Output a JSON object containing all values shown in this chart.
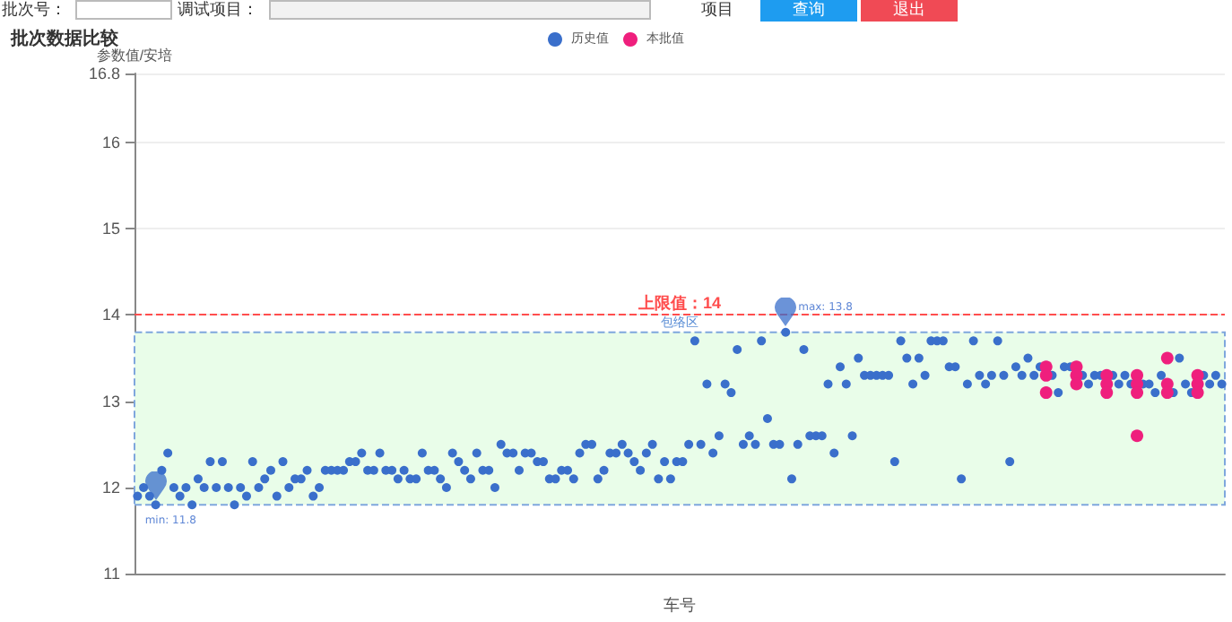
{
  "chart_data": {
    "type": "scatter",
    "title": "批次数据比较",
    "xlabel": "车号",
    "ylabel": "参数值/安培",
    "categories": [
      null,
      null,
      null,
      null,
      null,
      null,
      null,
      null,
      null,
      null,
      null,
      null,
      null,
      null,
      null,
      null,
      null,
      null,
      null,
      null,
      null,
      null,
      null,
      null,
      null,
      null,
      null,
      null,
      null,
      null,
      null,
      null,
      null,
      null,
      null,
      null,
      null,
      null,
      null,
      null,
      null,
      null,
      null,
      null,
      null,
      null,
      null,
      null,
      null,
      null,
      null,
      null,
      null,
      null,
      null,
      null,
      null,
      null,
      null,
      null,
      null,
      null,
      null,
      null,
      null,
      null,
      null,
      null,
      null,
      null,
      null,
      null,
      null,
      null,
      null,
      null,
      null,
      null,
      null,
      null,
      null,
      null,
      null,
      null,
      null,
      null,
      null,
      null,
      null,
      null,
      null,
      null,
      null,
      null,
      null,
      null,
      null,
      null,
      null,
      null,
      null,
      null,
      null,
      null,
      null,
      null,
      null,
      null,
      null,
      null,
      null,
      null,
      null,
      null,
      null,
      null,
      null,
      null,
      null,
      null,
      null,
      null,
      null,
      null,
      null,
      null,
      null,
      null,
      null,
      null,
      null,
      null,
      null,
      null,
      null,
      null,
      null,
      null,
      null,
      null,
      null,
      null,
      null,
      null,
      null,
      null,
      null,
      null,
      null,
      null,
      null,
      null,
      null,
      null,
      null,
      null,
      null,
      null,
      null,
      null,
      null,
      null,
      null,
      null,
      null,
      null,
      null,
      null,
      null,
      null,
      null,
      null,
      null,
      null,
      null,
      null,
      null,
      null,
      null,
      null
    ],
    "series": [
      {
        "name": "历史值",
        "color": "#3a6fcb",
        "values": [
          11.9,
          12.0,
          11.9,
          11.8,
          12.2,
          12.4,
          12.0,
          11.9,
          12.0,
          11.8,
          12.1,
          12.0,
          12.3,
          12.0,
          12.3,
          12.0,
          11.8,
          12.0,
          11.9,
          12.3,
          12.0,
          12.1,
          12.2,
          11.9,
          12.3,
          12.0,
          12.1,
          12.1,
          12.2,
          11.9,
          12.0,
          12.2,
          12.2,
          12.2,
          12.2,
          12.3,
          12.3,
          12.4,
          12.2,
          12.2,
          12.4,
          12.2,
          12.2,
          12.1,
          12.2,
          12.1,
          12.1,
          12.4,
          12.2,
          12.2,
          12.1,
          12.0,
          12.4,
          12.3,
          12.2,
          12.1,
          12.4,
          12.2,
          12.2,
          12.0,
          12.5,
          12.4,
          12.4,
          12.2,
          12.4,
          12.4,
          12.3,
          12.3,
          12.1,
          12.1,
          12.2,
          12.2,
          12.1,
          12.4,
          12.5,
          12.5,
          12.1,
          12.2,
          12.4,
          12.4,
          12.5,
          12.4,
          12.3,
          12.2,
          12.4,
          12.5,
          12.1,
          12.3,
          12.1,
          12.3,
          12.3,
          12.5,
          13.7,
          12.5,
          13.2,
          12.4,
          12.6,
          13.2,
          13.1,
          13.6,
          12.5,
          12.6,
          12.5,
          13.7,
          12.8,
          12.5,
          12.5,
          13.8,
          12.1,
          12.5,
          13.6,
          12.6,
          12.6,
          12.6,
          13.2,
          12.4,
          13.4,
          13.2,
          12.6,
          13.5,
          13.3,
          13.3,
          13.3,
          13.3,
          13.3,
          12.3,
          13.7,
          13.5,
          13.2,
          13.5,
          13.3,
          13.7,
          13.7,
          13.7,
          13.4,
          13.4,
          12.1,
          13.2,
          13.7,
          13.3,
          13.2,
          13.3,
          13.7,
          13.3,
          12.3,
          13.4,
          13.3,
          13.5,
          13.3,
          13.4,
          null,
          13.3,
          13.1,
          13.4,
          13.4,
          null,
          13.3,
          13.2,
          13.3,
          13.3,
          null,
          13.3,
          13.2,
          13.3,
          13.2,
          null,
          13.2,
          13.2,
          13.1,
          13.3,
          null,
          13.1,
          13.5,
          13.2,
          13.1,
          null,
          13.3,
          13.2,
          13.3,
          13.2
        ]
      },
      {
        "name": "本批值",
        "color": "#ef1f7d",
        "values": [
          null,
          null,
          null,
          null,
          null,
          null,
          null,
          null,
          null,
          null,
          null,
          null,
          null,
          null,
          null,
          null,
          null,
          null,
          null,
          null,
          null,
          null,
          null,
          null,
          null,
          null,
          null,
          null,
          null,
          null,
          null,
          null,
          null,
          null,
          null,
          null,
          null,
          null,
          null,
          null,
          null,
          null,
          null,
          null,
          null,
          null,
          null,
          null,
          null,
          null,
          null,
          null,
          null,
          null,
          null,
          null,
          null,
          null,
          null,
          null,
          null,
          null,
          null,
          null,
          null,
          null,
          null,
          null,
          null,
          null,
          null,
          null,
          null,
          null,
          null,
          null,
          null,
          null,
          null,
          null,
          null,
          null,
          null,
          null,
          null,
          null,
          null,
          null,
          null,
          null,
          null,
          null,
          null,
          null,
          null,
          null,
          null,
          null,
          null,
          null,
          null,
          null,
          null,
          null,
          null,
          null,
          null,
          null,
          null,
          null,
          null,
          null,
          null,
          null,
          null,
          null,
          null,
          null,
          null,
          null,
          null,
          null,
          null,
          null,
          null,
          null,
          null,
          null,
          null,
          null,
          null,
          null,
          null,
          null,
          null,
          null,
          null,
          null,
          null,
          null,
          null,
          null,
          null,
          null,
          null,
          null,
          null,
          null,
          null,
          null,
          13.4,
          null,
          null,
          null,
          null,
          13.4,
          null,
          null,
          null,
          null,
          13.3,
          null,
          null,
          null,
          null,
          13.3,
          null,
          null,
          null,
          null,
          13.5,
          null,
          null,
          null,
          null,
          13.3,
          null,
          null,
          null,
          null
        ]
      },
      {
        "color": "#ef1f7d",
        "values": [
          null,
          null,
          null,
          null,
          null,
          null,
          null,
          null,
          null,
          null,
          null,
          null,
          null,
          null,
          null,
          null,
          null,
          null,
          null,
          null,
          null,
          null,
          null,
          null,
          null,
          null,
          null,
          null,
          null,
          null,
          null,
          null,
          null,
          null,
          null,
          null,
          null,
          null,
          null,
          null,
          null,
          null,
          null,
          null,
          null,
          null,
          null,
          null,
          null,
          null,
          null,
          null,
          null,
          null,
          null,
          null,
          null,
          null,
          null,
          null,
          null,
          null,
          null,
          null,
          null,
          null,
          null,
          null,
          null,
          null,
          null,
          null,
          null,
          null,
          null,
          null,
          null,
          null,
          null,
          null,
          null,
          null,
          null,
          null,
          null,
          null,
          null,
          null,
          null,
          null,
          null,
          null,
          null,
          null,
          null,
          null,
          null,
          null,
          null,
          null,
          null,
          null,
          null,
          null,
          null,
          null,
          null,
          null,
          null,
          null,
          null,
          null,
          null,
          null,
          null,
          null,
          null,
          null,
          null,
          null,
          null,
          null,
          null,
          null,
          null,
          null,
          null,
          null,
          null,
          null,
          null,
          null,
          null,
          null,
          null,
          null,
          null,
          null,
          null,
          null,
          null,
          null,
          null,
          null,
          null,
          null,
          null,
          null,
          null,
          null,
          13.3,
          null,
          null,
          null,
          null,
          13.3,
          null,
          null,
          null,
          null,
          13.2,
          null,
          null,
          null,
          null,
          13.2,
          null,
          null,
          null,
          null,
          13.2,
          null,
          null,
          null,
          null,
          13.2,
          null,
          null,
          null,
          null
        ]
      },
      {
        "color": "#ef1f7d",
        "values": [
          null,
          null,
          null,
          null,
          null,
          null,
          null,
          null,
          null,
          null,
          null,
          null,
          null,
          null,
          null,
          null,
          null,
          null,
          null,
          null,
          null,
          null,
          null,
          null,
          null,
          null,
          null,
          null,
          null,
          null,
          null,
          null,
          null,
          null,
          null,
          null,
          null,
          null,
          null,
          null,
          null,
          null,
          null,
          null,
          null,
          null,
          null,
          null,
          null,
          null,
          null,
          null,
          null,
          null,
          null,
          null,
          null,
          null,
          null,
          null,
          null,
          null,
          null,
          null,
          null,
          null,
          null,
          null,
          null,
          null,
          null,
          null,
          null,
          null,
          null,
          null,
          null,
          null,
          null,
          null,
          null,
          null,
          null,
          null,
          null,
          null,
          null,
          null,
          null,
          null,
          null,
          null,
          null,
          null,
          null,
          null,
          null,
          null,
          null,
          null,
          null,
          null,
          null,
          null,
          null,
          null,
          null,
          null,
          null,
          null,
          null,
          null,
          null,
          null,
          null,
          null,
          null,
          null,
          null,
          null,
          null,
          null,
          null,
          null,
          null,
          null,
          null,
          null,
          null,
          null,
          null,
          null,
          null,
          null,
          null,
          null,
          null,
          null,
          null,
          null,
          null,
          null,
          null,
          null,
          null,
          null,
          null,
          null,
          null,
          null,
          13.1,
          null,
          null,
          null,
          null,
          13.2,
          null,
          null,
          null,
          null,
          13.1,
          null,
          null,
          null,
          null,
          13.1,
          null,
          null,
          null,
          null,
          13.1,
          null,
          null,
          null,
          null,
          13.1,
          null,
          null,
          null,
          null
        ]
      },
      {
        "color": "#ef1f7d",
        "values": [
          null,
          null,
          null,
          null,
          null,
          null,
          null,
          null,
          null,
          null,
          null,
          null,
          null,
          null,
          null,
          null,
          null,
          null,
          null,
          null,
          null,
          null,
          null,
          null,
          null,
          null,
          null,
          null,
          null,
          null,
          null,
          null,
          null,
          null,
          null,
          null,
          null,
          null,
          null,
          null,
          null,
          null,
          null,
          null,
          null,
          null,
          null,
          null,
          null,
          null,
          null,
          null,
          null,
          null,
          null,
          null,
          null,
          null,
          null,
          null,
          null,
          null,
          null,
          null,
          null,
          null,
          null,
          null,
          null,
          null,
          null,
          null,
          null,
          null,
          null,
          null,
          null,
          null,
          null,
          null,
          null,
          null,
          null,
          null,
          null,
          null,
          null,
          null,
          null,
          null,
          null,
          null,
          null,
          null,
          null,
          null,
          null,
          null,
          null,
          null,
          null,
          null,
          null,
          null,
          null,
          null,
          null,
          null,
          null,
          null,
          null,
          null,
          null,
          null,
          null,
          null,
          null,
          null,
          null,
          null,
          null,
          null,
          null,
          null,
          null,
          null,
          null,
          null,
          null,
          null,
          null,
          null,
          null,
          null,
          null,
          null,
          null,
          null,
          null,
          null,
          null,
          null,
          null,
          null,
          null,
          null,
          null,
          null,
          null,
          null,
          null,
          null,
          null,
          null,
          null,
          null,
          null,
          null,
          null,
          null,
          null,
          null,
          null,
          null,
          null,
          12.6,
          null,
          null,
          null,
          null,
          null,
          null,
          null,
          null,
          null,
          null,
          null,
          null,
          null,
          null
        ]
      }
    ],
    "ylim": [
      11,
      16.8
    ],
    "yticks": [
      11,
      12,
      13,
      14,
      15,
      16,
      16.8
    ],
    "grid": "y",
    "legend": "top",
    "marker": "circle",
    "ref_lines": [
      {
        "axis": "y",
        "value": 14,
        "label": "上限值：14",
        "color": "#ff4d4d",
        "line_style": "dashed"
      }
    ],
    "bands": [
      {
        "axis": "y",
        "from": 11.8,
        "to": 13.8,
        "label": "包络区",
        "color": "#e9fde9"
      }
    ],
    "annotations": [
      {
        "text": "max: 13.8",
        "y": 13.8
      },
      {
        "text": "min: 11.8",
        "y": 11.8
      },
      "批次号：",
      "调试项目：",
      "项目",
      "查询",
      "退出"
    ]
  }
}
